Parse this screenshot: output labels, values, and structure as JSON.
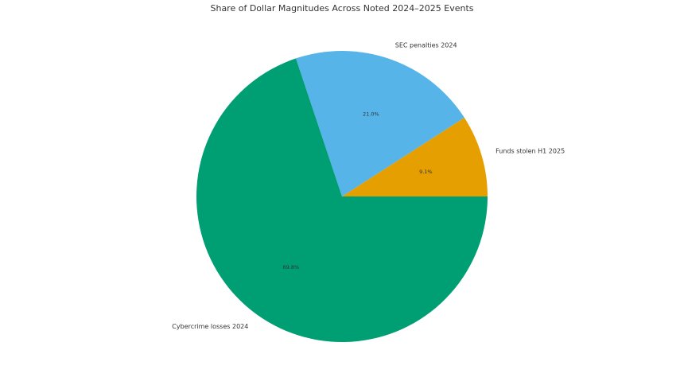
{
  "chart_data": {
    "type": "pie",
    "title": "Share of Dollar Magnitudes Across Noted 2024–2025 Events",
    "categories": [
      "Funds stolen H1 2025",
      "SEC penalties 2024",
      "Cybercrime losses 2024"
    ],
    "values": [
      9.1,
      21.0,
      69.8
    ],
    "value_labels": [
      "9.1%",
      "21.0%",
      "69.8%"
    ],
    "colors": [
      "#E69F00",
      "#56B4E9",
      "#009E73"
    ]
  }
}
